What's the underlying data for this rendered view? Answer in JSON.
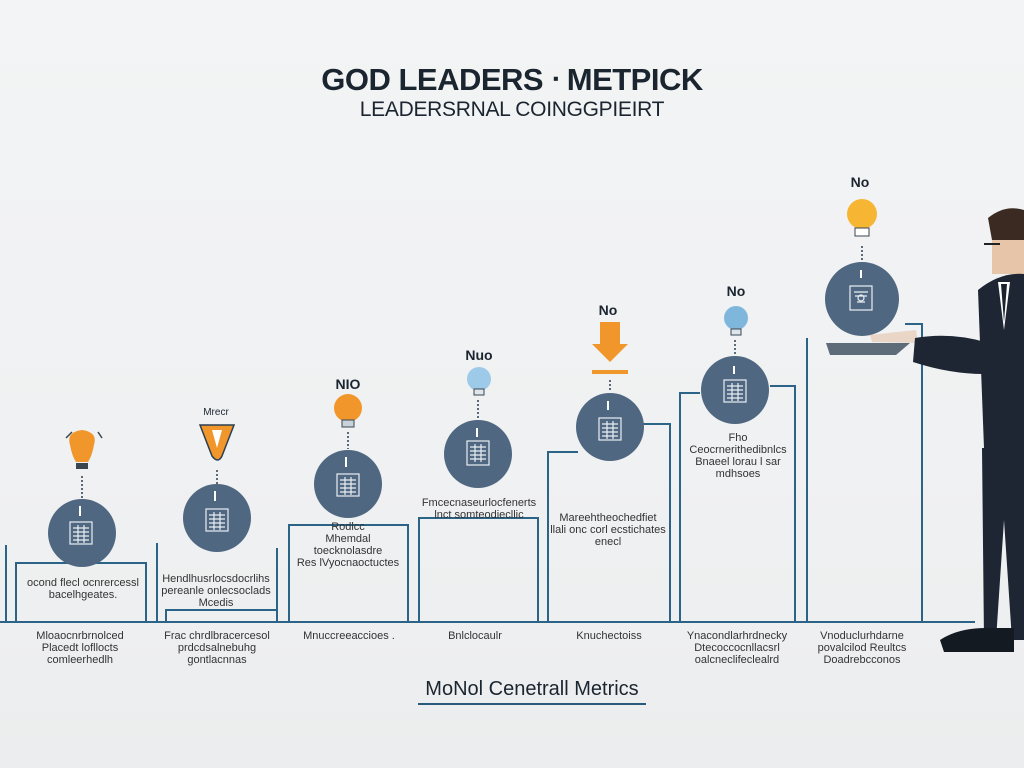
{
  "header": {
    "title": "GOD LEADERS ᐧ METPICK",
    "subtitle": "LEADERSRNAL COINGGPIEIRT"
  },
  "colors": {
    "circle": "#4f6780",
    "circle_dark": "#3f566e",
    "line": "#2b6486",
    "orange": "#f0962a",
    "blue_bulb": "#7fb6dc",
    "yellow_bulb": "#f6b633",
    "suit": "#1e2633"
  },
  "steps": [
    {
      "top_label": "",
      "icon": "orange-lightbulb-icon",
      "mid_label": "ocond flecl ocnrercessl\nbacelhgeates.",
      "bottom_label": "Mloaocnrbrnolced\nPlacedt lofllocts\ncomleerhedlh"
    },
    {
      "top_label": "Mrecr",
      "icon": "orange-funnel-icon",
      "mid_label": "Hendlhusrlocsdocrlihs\npereanle onlecsoclads\nMcedis",
      "bottom_label": "Frac chrdlbracercesol\nprdcdsalnebuhg\ngontlacnnas"
    },
    {
      "top_label": "NIO",
      "icon": "orange-lightbulb-icon",
      "mid_label": "Rodlcc\nMhemdal toecknolasdre\nRes lVyocnaoctuctes",
      "bottom_label": "Mnuccreeaccioes ."
    },
    {
      "top_label": "Nuo",
      "icon": "blue-lightbulb-icon",
      "mid_label": "Fmcecnaseurlocfenerts\nlnct  somteodiecllic",
      "bottom_label": "Bnlclocaulr"
    },
    {
      "top_label": "No",
      "icon": "orange-arrow-icon",
      "mid_label": "Mareehtheochedfiet\nllali onc corl ecstichates\nenecl",
      "bottom_label": "Knuchectoiss"
    },
    {
      "top_label": "No",
      "icon": "blue-lightbulb-icon",
      "mid_label": "Fho Ceocrnerithedibnlcs\nBnaeel lorau  l sar mdhsoes",
      "bottom_label": "Ynacondlarhrdnecky\nDtecoccocnllacsrl\noalcneclifeclealrd"
    },
    {
      "top_label": "No",
      "icon": "yellow-lightbulb-icon",
      "mid_label": "",
      "bottom_label": "Vnoduclurhdarne\npovalcilod Reultcs\nDoadrebcconos"
    }
  ],
  "footer": {
    "title": "MoNol Cenetrall Metrics"
  }
}
